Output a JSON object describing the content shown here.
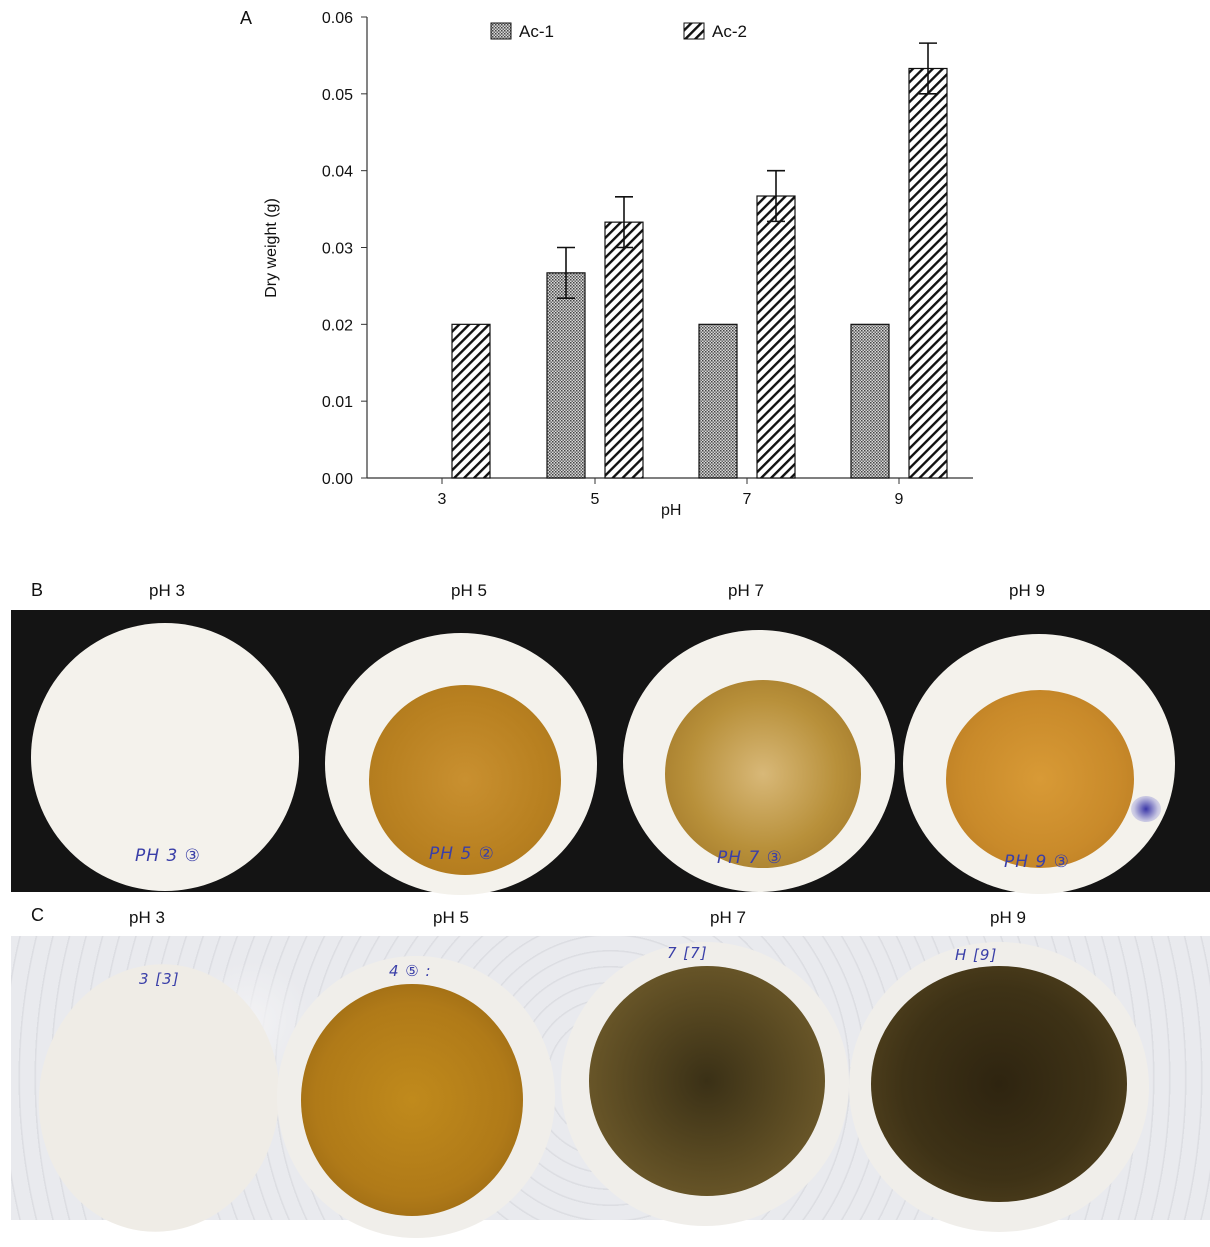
{
  "panels": {
    "a": {
      "letter": "A"
    },
    "b": {
      "letter": "B",
      "labels": [
        "pH 3",
        "pH 5",
        "pH 7",
        "pH 9"
      ],
      "handwritten": [
        "PH 3 ③",
        "PH 5 ②",
        "PH 7 ③",
        "PH 9 ③"
      ]
    },
    "c": {
      "letter": "C",
      "labels": [
        "pH 3",
        "pH 5",
        "pH 7",
        "pH 9"
      ],
      "handwritten": [
        "3 [3]",
        "4 ⑤ :",
        "7 [7]",
        "H [9]"
      ]
    }
  },
  "chart_data": {
    "type": "bar",
    "title": "",
    "xlabel": "pH",
    "ylabel": "Dry weight (g)",
    "categories": [
      "3",
      "5",
      "7",
      "9"
    ],
    "ylim": [
      0,
      0.06
    ],
    "yticks": [
      "0.00",
      "0.01",
      "0.02",
      "0.03",
      "0.04",
      "0.05",
      "0.06"
    ],
    "grid": false,
    "legend_position": "top",
    "series": [
      {
        "name": "Ac-1",
        "pattern": "dotted-crosshatch",
        "values": [
          0.0,
          0.0267,
          0.02,
          0.02
        ],
        "error": [
          0,
          0.0033,
          0,
          0
        ]
      },
      {
        "name": "Ac-2",
        "pattern": "diagonal-hatch",
        "values": [
          0.02,
          0.0333,
          0.0367,
          0.0533
        ],
        "error": [
          0,
          0.0033,
          0.0033,
          0.0033
        ]
      }
    ]
  }
}
